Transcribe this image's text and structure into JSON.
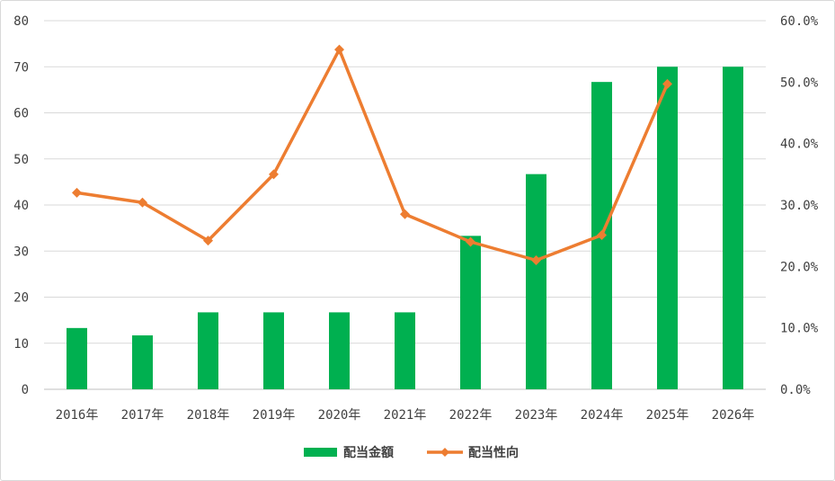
{
  "chart_data": {
    "type": "bar+line",
    "title": "",
    "categories": [
      "2016年",
      "2017年",
      "2018年",
      "2019年",
      "2020年",
      "2021年",
      "2022年",
      "2023年",
      "2024年",
      "2025年",
      "2026年"
    ],
    "series": [
      {
        "name": "配当金額",
        "type": "bar",
        "axis": "left",
        "color": "#00b050",
        "values": [
          13.3,
          11.7,
          16.7,
          16.7,
          16.7,
          16.7,
          33.3,
          46.7,
          66.7,
          70,
          70
        ]
      },
      {
        "name": "配当性向",
        "type": "line",
        "axis": "right",
        "color": "#ed7d31",
        "marker": "diamond",
        "values": [
          0.32,
          0.304,
          0.242,
          0.35,
          0.553,
          0.285,
          0.24,
          0.21,
          0.251,
          0.497,
          null
        ]
      }
    ],
    "y_left": {
      "min": 0,
      "max": 80,
      "ticks": [
        0,
        10,
        20,
        30,
        40,
        50,
        60,
        70,
        80
      ],
      "tick_labels": [
        "0",
        "10",
        "20",
        "30",
        "40",
        "50",
        "60",
        "70",
        "80"
      ]
    },
    "y_right": {
      "min": 0,
      "max": 0.6,
      "ticks": [
        0,
        0.1,
        0.2,
        0.3,
        0.4,
        0.5,
        0.6
      ],
      "tick_labels": [
        "0.0%",
        "10.0%",
        "20.0%",
        "30.0%",
        "40.0%",
        "50.0%",
        "60.0%"
      ]
    },
    "grid": true,
    "legend_position": "bottom",
    "legend": [
      "配当金額",
      "配当性向"
    ]
  }
}
